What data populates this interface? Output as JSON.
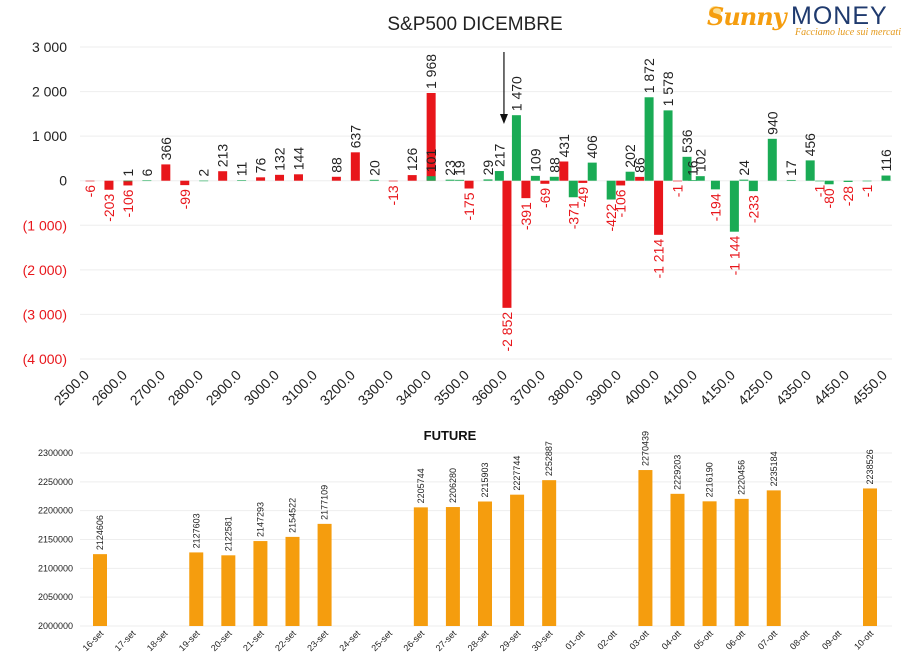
{
  "logo": {
    "word1": "Sunny",
    "word2": "MONEY",
    "tagline": "Facciamo luce sui mercati"
  },
  "colors": {
    "positive": "#1aab55",
    "negative": "#e8161b",
    "future": "#f59d0e",
    "neg_label": "#e8161b",
    "text": "#222222"
  },
  "chart_data": [
    {
      "type": "bar",
      "title": "S&P500 DICEMBRE",
      "ylim": [
        -4000,
        3000
      ],
      "yticks": [
        3000,
        2000,
        1000,
        0,
        -1000,
        -2000,
        -3000,
        -4000
      ],
      "ytick_labels": [
        "3 000",
        "2 000",
        "1 000",
        "0",
        "(1 000)",
        "(2 000)",
        "(3 000)",
        "(4 000)"
      ],
      "x_labels": [
        "2500.0",
        "2600.0",
        "2700.0",
        "2800.0",
        "2900.0",
        "3000.0",
        "3100.0",
        "3200.0",
        "3300.0",
        "3400.0",
        "3500.0",
        "3600.0",
        "3700.0",
        "3800.0",
        "3900.0",
        "4000.0",
        "4100.0",
        "4150.0",
        "4250.0",
        "4350.0",
        "4450.0",
        "4550.0"
      ],
      "arrow_at": 3600,
      "series": [
        {
          "color": "red",
          "points": [
            {
              "x": 2500,
              "v": -6,
              "label": "-6"
            },
            {
              "x": 2550,
              "v": -203,
              "label": "-203"
            },
            {
              "x": 2600,
              "v": -106,
              "label": "-106"
            },
            {
              "x": 2700,
              "v": 366,
              "label": "366"
            },
            {
              "x": 2750,
              "v": -99,
              "label": "-99"
            },
            {
              "x": 2850,
              "v": 213,
              "label": "213"
            },
            {
              "x": 2950,
              "v": 76,
              "label": "76"
            },
            {
              "x": 3000,
              "v": 132,
              "label": "132"
            },
            {
              "x": 3050,
              "v": 144,
              "label": "144"
            },
            {
              "x": 3150,
              "v": 88,
              "label": "88"
            },
            {
              "x": 3200,
              "v": 637,
              "label": "637"
            },
            {
              "x": 3300,
              "v": -13,
              "label": "-13"
            },
            {
              "x": 3350,
              "v": 126,
              "label": "126"
            },
            {
              "x": 3400,
              "v": 1968,
              "label": "1 968"
            },
            {
              "x": 3500,
              "v": -175,
              "label": "-175"
            },
            {
              "x": 3600,
              "v": -2852,
              "label": "-2 852"
            },
            {
              "x": 3650,
              "v": -391,
              "label": "-391"
            },
            {
              "x": 3700,
              "v": -69,
              "label": "-69"
            },
            {
              "x": 3750,
              "v": 431,
              "label": "431"
            },
            {
              "x": 3800,
              "v": -49,
              "label": "-49"
            },
            {
              "x": 3900,
              "v": -106,
              "label": "-106"
            },
            {
              "x": 3950,
              "v": 86,
              "label": "86"
            },
            {
              "x": 4000,
              "v": -1214,
              "label": "-1 214"
            },
            {
              "x": 4050,
              "v": -1,
              "label": "-1"
            }
          ]
        },
        {
          "color": "green",
          "points": [
            {
              "x": 2600,
              "v": 1,
              "label": "1"
            },
            {
              "x": 2650,
              "v": 6,
              "label": "6"
            },
            {
              "x": 2800,
              "v": 2,
              "label": "2"
            },
            {
              "x": 2900,
              "v": 11,
              "label": "11"
            },
            {
              "x": 3250,
              "v": 20,
              "label": "20"
            },
            {
              "x": 3400,
              "v": 101,
              "label": "101"
            },
            {
              "x": 3450,
              "v": 23,
              "label": "23"
            },
            {
              "x": 3475,
              "v": 19,
              "label": "19"
            },
            {
              "x": 3550,
              "v": 29,
              "label": "29"
            },
            {
              "x": 3580,
              "v": 217,
              "label": "217"
            },
            {
              "x": 3625,
              "v": 1470,
              "label": "1 470"
            },
            {
              "x": 3675,
              "v": 109,
              "label": "109"
            },
            {
              "x": 3725,
              "v": 88,
              "label": "88"
            },
            {
              "x": 3775,
              "v": -371,
              "label": "-371"
            },
            {
              "x": 3825,
              "v": 406,
              "label": "406"
            },
            {
              "x": 3875,
              "v": -422,
              "label": "-422"
            },
            {
              "x": 3925,
              "v": 202,
              "label": "202"
            },
            {
              "x": 3975,
              "v": 1872,
              "label": "1 872"
            },
            {
              "x": 4025,
              "v": 1578,
              "label": "1 578"
            },
            {
              "x": 4075,
              "v": 536,
              "label": "536"
            },
            {
              "x": 4090,
              "v": 16,
              "label": "16"
            },
            {
              "x": 4110,
              "v": 102,
              "label": "102"
            },
            {
              "x": 4150,
              "v": -194,
              "label": "-194"
            },
            {
              "x": 4200,
              "v": -1144,
              "label": "-1 144"
            },
            {
              "x": 4225,
              "v": 24,
              "label": "24"
            },
            {
              "x": 4250,
              "v": -233,
              "label": "-233"
            },
            {
              "x": 4300,
              "v": 940,
              "label": "940"
            },
            {
              "x": 4350,
              "v": 17,
              "label": "17"
            },
            {
              "x": 4400,
              "v": 456,
              "label": "456"
            },
            {
              "x": 4425,
              "v": -1,
              "label": "-1"
            },
            {
              "x": 4450,
              "v": -80,
              "label": "-80"
            },
            {
              "x": 4500,
              "v": -28,
              "label": "-28"
            },
            {
              "x": 4550,
              "v": -1,
              "label": "-1"
            },
            {
              "x": 4600,
              "v": 116,
              "label": "116"
            }
          ]
        }
      ]
    },
    {
      "type": "bar",
      "title": "FUTURE",
      "ylim": [
        2000000,
        2300000
      ],
      "yticks": [
        2000000,
        2050000,
        2100000,
        2150000,
        2200000,
        2250000,
        2300000
      ],
      "ytick_labels": [
        "2000000",
        "2050000",
        "2100000",
        "2150000",
        "2200000",
        "2250000",
        "2300000"
      ],
      "categories": [
        "16-set",
        "17-set",
        "18-set",
        "19-set",
        "20-set",
        "21-set",
        "22-set",
        "23-set",
        "24-set",
        "25-set",
        "26-set",
        "27-set",
        "28-set",
        "29-set",
        "30-set",
        "01-ott",
        "02-ott",
        "03-ott",
        "04-ott",
        "05-ott",
        "06-ott",
        "07-ott",
        "08-ott",
        "09-ott",
        "10-ott"
      ],
      "values": [
        2124606,
        null,
        null,
        2127603,
        2122581,
        2147293,
        2154522,
        2177109,
        null,
        null,
        2205744,
        2206280,
        2215903,
        2227744,
        2252887,
        null,
        null,
        2270439,
        2229203,
        2216190,
        2220456,
        2235184,
        null,
        null,
        2238526
      ],
      "value_labels": [
        "2124606",
        "",
        "",
        "2127603",
        "2122581",
        "2147293",
        "2154522",
        "2177109",
        "",
        "",
        "2205744",
        "2206280",
        "2215903",
        "2227744",
        "2252887",
        "",
        "",
        "2270439",
        "2229203",
        "2216190",
        "2220456",
        "2235184",
        "",
        "",
        "2238526"
      ]
    }
  ]
}
